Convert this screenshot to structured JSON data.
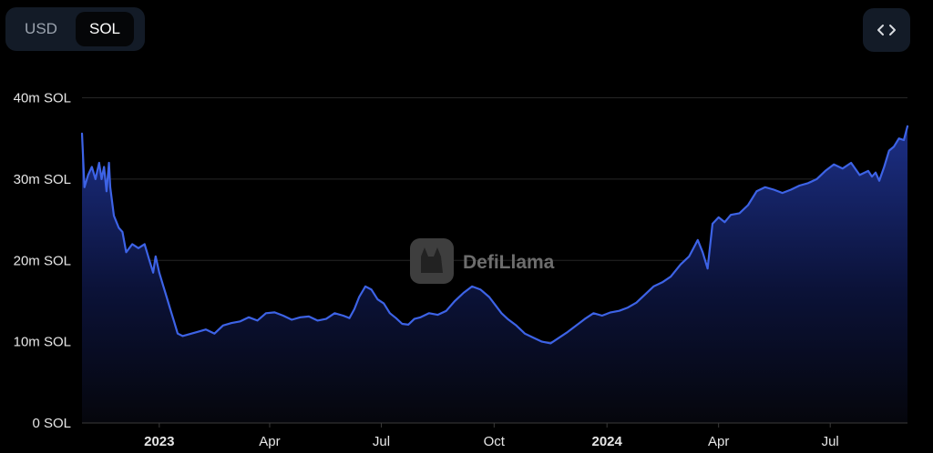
{
  "toggle": {
    "usd_label": "USD",
    "sol_label": "SOL",
    "selected": "SOL"
  },
  "embed_button": {
    "icon": "code-brackets-icon"
  },
  "watermark": {
    "text": "DefiLlama"
  },
  "colors": {
    "background": "#000000",
    "line": "#3d63e6",
    "area_top": "#1c2f86",
    "button_bg": "#131b27",
    "grid": "#262626"
  },
  "chart_data": {
    "type": "area",
    "title": "",
    "xlabel": "",
    "ylabel": "",
    "ylim": [
      0,
      40000000
    ],
    "xlim": [
      "2022-10-30",
      "2024-09-02"
    ],
    "y_ticks": [
      {
        "value": 0,
        "label": "0 SOL"
      },
      {
        "value": 10000000,
        "label": "10m SOL"
      },
      {
        "value": 20000000,
        "label": "20m SOL"
      },
      {
        "value": 30000000,
        "label": "30m SOL"
      },
      {
        "value": 40000000,
        "label": "40m SOL"
      }
    ],
    "x_ticks": [
      {
        "date": "2023-01-01",
        "label": "2023",
        "bold": true
      },
      {
        "date": "2023-04-01",
        "label": "Apr",
        "bold": false
      },
      {
        "date": "2023-07-01",
        "label": "Jul",
        "bold": false
      },
      {
        "date": "2023-10-01",
        "label": "Oct",
        "bold": false
      },
      {
        "date": "2024-01-01",
        "label": "2024",
        "bold": true
      },
      {
        "date": "2024-04-01",
        "label": "Apr",
        "bold": false
      },
      {
        "date": "2024-07-01",
        "label": "Jul",
        "bold": false
      }
    ],
    "grid": true,
    "legend": "none",
    "series": [
      {
        "x": [
          "2022-10-30",
          "2022-11-01",
          "2022-11-04",
          "2022-11-07",
          "2022-11-10",
          "2022-11-13",
          "2022-11-15",
          "2022-11-17",
          "2022-11-19",
          "2022-11-21",
          "2022-11-22",
          "2022-11-25",
          "2022-11-29",
          "2022-12-02",
          "2022-12-05",
          "2022-12-10",
          "2022-12-15",
          "2022-12-20",
          "2022-12-24",
          "2022-12-27",
          "2022-12-29",
          "2023-01-01",
          "2023-01-04",
          "2023-01-07",
          "2023-01-10",
          "2023-01-13",
          "2023-01-16",
          "2023-01-20",
          "2023-01-25",
          "2023-02-01",
          "2023-02-08",
          "2023-02-15",
          "2023-02-22",
          "2023-03-01",
          "2023-03-08",
          "2023-03-15",
          "2023-03-22",
          "2023-03-29",
          "2023-04-05",
          "2023-04-12",
          "2023-04-19",
          "2023-04-26",
          "2023-05-03",
          "2023-05-10",
          "2023-05-17",
          "2023-05-24",
          "2023-05-31",
          "2023-06-05",
          "2023-06-09",
          "2023-06-13",
          "2023-06-18",
          "2023-06-23",
          "2023-06-28",
          "2023-07-03",
          "2023-07-08",
          "2023-07-13",
          "2023-07-18",
          "2023-07-23",
          "2023-07-28",
          "2023-08-02",
          "2023-08-09",
          "2023-08-16",
          "2023-08-23",
          "2023-08-30",
          "2023-09-06",
          "2023-09-13",
          "2023-09-20",
          "2023-09-27",
          "2023-10-02",
          "2023-10-07",
          "2023-10-12",
          "2023-10-19",
          "2023-10-26",
          "2023-11-02",
          "2023-11-09",
          "2023-11-16",
          "2023-11-23",
          "2023-11-30",
          "2023-12-07",
          "2023-12-14",
          "2023-12-21",
          "2023-12-28",
          "2024-01-04",
          "2024-01-11",
          "2024-01-18",
          "2024-01-25",
          "2024-02-01",
          "2024-02-08",
          "2024-02-15",
          "2024-02-22",
          "2024-03-01",
          "2024-03-08",
          "2024-03-15",
          "2024-03-19",
          "2024-03-23",
          "2024-03-27",
          "2024-04-01",
          "2024-04-06",
          "2024-04-11",
          "2024-04-18",
          "2024-04-25",
          "2024-05-02",
          "2024-05-09",
          "2024-05-16",
          "2024-05-23",
          "2024-05-30",
          "2024-06-06",
          "2024-06-13",
          "2024-06-20",
          "2024-06-27",
          "2024-07-04",
          "2024-07-11",
          "2024-07-18",
          "2024-07-25",
          "2024-08-01",
          "2024-08-04",
          "2024-08-07",
          "2024-08-10",
          "2024-08-14",
          "2024-08-18",
          "2024-08-22",
          "2024-08-26",
          "2024-08-30",
          "2024-09-02"
        ],
        "y": [
          35600000,
          29000000,
          30500000,
          31500000,
          30000000,
          32000000,
          30000000,
          31500000,
          28500000,
          32000000,
          29000000,
          25500000,
          24000000,
          23500000,
          21000000,
          22000000,
          21500000,
          22000000,
          20000000,
          18500000,
          20500000,
          18500000,
          17000000,
          15500000,
          14000000,
          12500000,
          11000000,
          10700000,
          10900000,
          11200000,
          11500000,
          11000000,
          12000000,
          12300000,
          12500000,
          13000000,
          12600000,
          13500000,
          13600000,
          13200000,
          12700000,
          13000000,
          13100000,
          12600000,
          12800000,
          13500000,
          13200000,
          12900000,
          14000000,
          15500000,
          16800000,
          16400000,
          15200000,
          14700000,
          13500000,
          12900000,
          12200000,
          12100000,
          12800000,
          13000000,
          13500000,
          13300000,
          13800000,
          15000000,
          16000000,
          16800000,
          16400000,
          15500000,
          14500000,
          13500000,
          12800000,
          12000000,
          11000000,
          10500000,
          10000000,
          9800000,
          10500000,
          11200000,
          12000000,
          12800000,
          13500000,
          13200000,
          13600000,
          13800000,
          14200000,
          14800000,
          15800000,
          16800000,
          17300000,
          18000000,
          19500000,
          20500000,
          22500000,
          21000000,
          19000000,
          24500000,
          25300000,
          24700000,
          25600000,
          25800000,
          26800000,
          28500000,
          29000000,
          28700000,
          28300000,
          28700000,
          29200000,
          29500000,
          30000000,
          31000000,
          31800000,
          31300000,
          32000000,
          30500000,
          31000000,
          30300000,
          30800000,
          29800000,
          31500000,
          33500000,
          34000000,
          35000000,
          34800000,
          36500000
        ]
      }
    ]
  }
}
